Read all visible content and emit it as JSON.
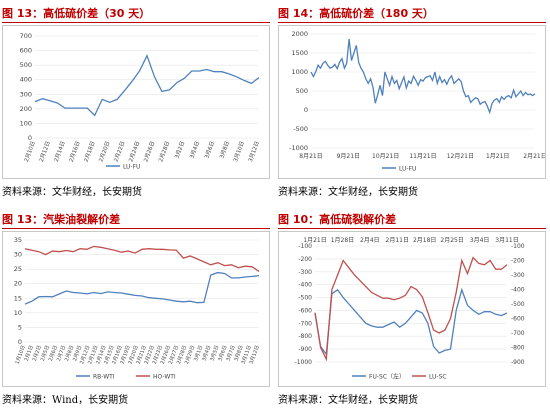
{
  "colors": {
    "accent": "#c00000",
    "blue": "#4f81bd",
    "red": "#c0504d"
  },
  "panels": [
    {
      "title": "图 13：高低硫价差（30 天）",
      "source": "资料来源：文华财经，长安期货",
      "chart_data": {
        "type": "line",
        "ylim": [
          0,
          700
        ],
        "yticks": [
          0,
          100,
          200,
          300,
          400,
          500,
          600,
          700
        ],
        "xlabels": [
          "2月10日",
          "2月12日",
          "2月14日",
          "2月16日",
          "2月18日",
          "2月20日",
          "2月22日",
          "2月24日",
          "2月26日",
          "2月28日",
          "3月2日",
          "3月4日",
          "3月6日",
          "3月8日",
          "3月10日",
          "3月12日"
        ],
        "legend_position": "bottom",
        "series": [
          {
            "name": "LU-FU",
            "color": "#4f81bd",
            "values": [
              250,
              270,
              255,
              240,
              205,
              205,
              205,
              205,
              155,
              265,
              245,
              265,
              325,
              390,
              460,
              565,
              420,
              320,
              330,
              380,
              410,
              460,
              460,
              470,
              455,
              455,
              440,
              420,
              395,
              375,
              415
            ]
          }
        ]
      }
    },
    {
      "title": "图 14：高低硫价差（180 天）",
      "source": "资料来源：文华财经，长安期货",
      "chart_data": {
        "type": "line",
        "ylim": [
          -1000,
          2000
        ],
        "yticks": [
          -1000,
          -500,
          0,
          500,
          1000,
          1500,
          2000
        ],
        "xlabels": [
          "8月21日",
          "9月21日",
          "10月21日",
          "11月21日",
          "12月21日",
          "1月21日",
          "2月21日"
        ],
        "legend_position": "bottom",
        "series": [
          {
            "name": "LU-FU",
            "color": "#4f81bd",
            "values": [
              1000,
              880,
              1010,
              1180,
              1100,
              1230,
              1280,
              1180,
              1100,
              1130,
              1200,
              1090,
              1260,
              1350,
              1100,
              1230,
              1870,
              1300,
              1500,
              1700,
              1250,
              1100,
              1000,
              820,
              700,
              820,
              600,
              180,
              400,
              650,
              380,
              1000,
              820,
              650,
              880,
              700,
              780,
              560,
              720,
              870,
              580,
              760,
              700,
              890,
              780,
              650,
              800,
              760,
              850,
              880,
              900,
              780,
              1000,
              700,
              880,
              720,
              800,
              680,
              820,
              900,
              700,
              760,
              820,
              750,
              500,
              350,
              380,
              200,
              260,
              320,
              300,
              150,
              200,
              220,
              100,
              -60,
              180,
              260,
              300,
              200,
              350,
              280,
              350,
              380,
              320,
              520,
              350,
              420,
              500,
              380,
              460,
              400,
              420,
              380,
              430
            ]
          }
        ]
      }
    },
    {
      "title": "图 13：汽柴油裂解价差",
      "source": "资料来源：Wind，长安期货",
      "chart_data": {
        "type": "line",
        "ylim": [
          0,
          35
        ],
        "yticks": [
          0,
          5,
          10,
          15,
          20,
          25,
          30,
          35
        ],
        "xlabels": [
          "1月10日",
          "2月1日",
          "2月2日",
          "2月5日",
          "2月6日",
          "2月7日",
          "2月8日",
          "2月9日",
          "2月12日",
          "2月13日",
          "2月14日",
          "2月15日",
          "2月16日",
          "2月19日",
          "2月20日",
          "2月21日",
          "2月22日",
          "2月23日",
          "2月26日",
          "2月27日",
          "2月28日",
          "2月29日",
          "3月1日",
          "3月4日",
          "3月5日",
          "3月6日",
          "3月7日",
          "3月8日",
          "3月11日",
          "3月12日"
        ],
        "legend_position": "bottom",
        "series": [
          {
            "name": "RB-WTI",
            "color": "#4f81bd",
            "values": [
              13,
              14,
              15.5,
              15.6,
              15.5,
              16.5,
              17.5,
              17.0,
              16.8,
              16.5,
              17.0,
              16.6,
              17.2,
              17.0,
              16.8,
              16.4,
              16.0,
              15.8,
              15.2,
              15.0,
              14.8,
              14.4,
              14.0,
              13.8,
              14.0,
              13.5,
              13.6,
              23.0,
              23.8,
              23.5,
              22.0,
              22.0,
              22.3,
              22.5,
              22.8
            ]
          },
          {
            "name": "HO-WTI",
            "color": "#c0504d",
            "values": [
              32,
              31.5,
              31.0,
              30.0,
              31.2,
              31.0,
              31.4,
              31.0,
              32.0,
              31.8,
              32.8,
              32.5,
              32.0,
              31.5,
              30.8,
              31.2,
              30.5,
              31.8,
              32.0,
              31.8,
              31.8,
              31.6,
              31.5,
              28.8,
              29.5,
              28.5,
              27.5,
              26.5,
              27.2,
              26.2,
              26.5,
              25.5,
              26.0,
              25.8,
              24.2
            ]
          }
        ]
      }
    },
    {
      "title": "图 10：高低硫裂解价差",
      "source": "资料来源：文华财经，长安期货",
      "chart_data": {
        "type": "line",
        "ylim": [
          -1000,
          -100
        ],
        "y2lim": [
          -900,
          -100
        ],
        "yticks": [
          -1000,
          -900,
          -800,
          -700,
          -600,
          -500,
          -400,
          -300,
          -200,
          -100
        ],
        "y2ticks": [
          -900,
          -800,
          -700,
          -600,
          -500,
          -400,
          -300,
          -200,
          -100
        ],
        "xlabels": [
          "1月21日",
          "1月28日",
          "2月4日",
          "2月11日",
          "2月18日",
          "2月25日",
          "3月4日",
          "3月11日"
        ],
        "legend_position": "bottom",
        "series": [
          {
            "name": "FU-SC（左）",
            "color": "#4f81bd",
            "axis": "left",
            "values": [
              -620,
              -880,
              -940,
              -470,
              -440,
              -500,
              -550,
              -600,
              -650,
              -700,
              -720,
              -730,
              -730,
              -710,
              -690,
              -730,
              -700,
              -650,
              -600,
              -620,
              -700,
              -880,
              -930,
              -910,
              -900,
              -600,
              -440,
              -560,
              -600,
              -630,
              -610,
              -610,
              -630,
              -640,
              -620
            ]
          },
          {
            "name": "LU-SC",
            "color": "#c0504d",
            "axis": "right",
            "values": [
              -560,
              -800,
              -880,
              -400,
              -300,
              -200,
              -250,
              -300,
              -340,
              -380,
              -420,
              -440,
              -460,
              -460,
              -470,
              -460,
              -440,
              -380,
              -400,
              -450,
              -560,
              -680,
              -700,
              -680,
              -600,
              -420,
              -200,
              -290,
              -180,
              -220,
              -230,
              -200,
              -260,
              -260,
              -230
            ]
          }
        ]
      }
    }
  ]
}
